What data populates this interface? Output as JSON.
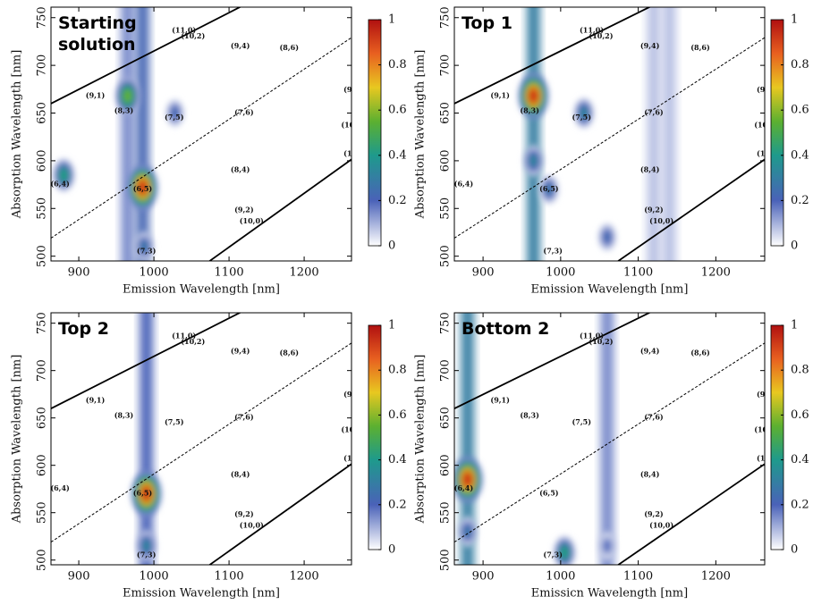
{
  "chart_data": [
    {
      "type": "ple-map",
      "title": "Starting solution",
      "xlabel": "Emission Wavelength [nm]",
      "ylabel": "Absorption Wavelength [nm]",
      "xlim": [
        863,
        1263
      ],
      "ylim": [
        495,
        761
      ],
      "xticks": [
        900,
        1000,
        1100,
        1200
      ],
      "yticks": [
        500,
        550,
        600,
        650,
        700,
        750
      ],
      "clim": [
        0,
        1
      ],
      "cticks": [
        0,
        0.2,
        0.4,
        0.6,
        0.8,
        1
      ],
      "colormap": [
        {
          "value": 0,
          "color": "#ffffff"
        },
        {
          "value": 0.2,
          "color": "#4a62b8"
        },
        {
          "value": 0.4,
          "color": "#1e9a8c"
        },
        {
          "value": 0.55,
          "color": "#5cb030"
        },
        {
          "value": 0.7,
          "color": "#e8c820"
        },
        {
          "value": 0.85,
          "color": "#e86020"
        },
        {
          "value": 1,
          "color": "#b01010"
        }
      ],
      "bands": [
        {
          "x": 965,
          "intensity": 0.15
        },
        {
          "x": 985,
          "intensity": 0.22
        }
      ],
      "peaks": [
        {
          "x": 880,
          "y": 585,
          "intensity": 0.45
        },
        {
          "x": 965,
          "y": 668,
          "intensity": 0.6
        },
        {
          "x": 985,
          "y": 572,
          "intensity": 1
        },
        {
          "x": 987,
          "y": 510,
          "intensity": 0.3
        },
        {
          "x": 1028,
          "y": 650,
          "intensity": 0.25
        }
      ],
      "annotations": [
        {
          "text": "(11,0)",
          "x": 1040,
          "y": 736
        },
        {
          "text": "(10,2)",
          "x": 1052,
          "y": 730
        },
        {
          "text": "(9,4)",
          "x": 1115,
          "y": 720
        },
        {
          "text": "(8,6)",
          "x": 1180,
          "y": 718
        },
        {
          "text": "(9,1)",
          "x": 922,
          "y": 668
        },
        {
          "text": "(8,3)",
          "x": 960,
          "y": 652
        },
        {
          "text": "(7,5)",
          "x": 1027,
          "y": 645
        },
        {
          "text": "(7,6)",
          "x": 1120,
          "y": 650
        },
        {
          "text": "(6,4)",
          "x": 875,
          "y": 575
        },
        {
          "text": "(6,5)",
          "x": 985,
          "y": 570
        },
        {
          "text": "(8,4)",
          "x": 1115,
          "y": 590
        },
        {
          "text": "(9,2)",
          "x": 1120,
          "y": 548
        },
        {
          "text": "(10,0)",
          "x": 1130,
          "y": 536
        },
        {
          "text": "(7,3)",
          "x": 990,
          "y": 505
        },
        {
          "text": "(9",
          "x": 1258,
          "y": 674
        },
        {
          "text": "(10",
          "x": 1258,
          "y": 637
        },
        {
          "text": "(1",
          "x": 1258,
          "y": 607
        }
      ]
    },
    {
      "type": "ple-map",
      "title": "Top 1",
      "xlabel": "Emission Wavelength [nm]",
      "ylabel": "Absorption Wavelength [nm]",
      "xlim": [
        863,
        1263
      ],
      "ylim": [
        495,
        761
      ],
      "xticks": [
        900,
        1000,
        1100,
        1200
      ],
      "yticks": [
        500,
        550,
        600,
        650,
        700,
        750
      ],
      "clim": [
        0,
        1
      ],
      "cticks": [
        0,
        0.2,
        0.4,
        0.6,
        0.8,
        1
      ],
      "colormap": [
        {
          "value": 0,
          "color": "#ffffff"
        },
        {
          "value": 0.2,
          "color": "#4a62b8"
        },
        {
          "value": 0.4,
          "color": "#1e9a8c"
        },
        {
          "value": 0.55,
          "color": "#5cb030"
        },
        {
          "value": 0.7,
          "color": "#e8c820"
        },
        {
          "value": 0.85,
          "color": "#e86020"
        },
        {
          "value": 1,
          "color": "#b01010"
        }
      ],
      "bands": [
        {
          "x": 965,
          "intensity": 0.3
        },
        {
          "x": 1120,
          "intensity": 0.08
        },
        {
          "x": 1140,
          "intensity": 0.08
        }
      ],
      "peaks": [
        {
          "x": 965,
          "y": 668,
          "intensity": 1
        },
        {
          "x": 965,
          "y": 600,
          "intensity": 0.35
        },
        {
          "x": 1030,
          "y": 650,
          "intensity": 0.35
        },
        {
          "x": 985,
          "y": 570,
          "intensity": 0.3
        },
        {
          "x": 1060,
          "y": 520,
          "intensity": 0.25
        }
      ],
      "annotations": [
        {
          "text": "(11,0)",
          "x": 1040,
          "y": 736
        },
        {
          "text": "(10,2)",
          "x": 1052,
          "y": 730
        },
        {
          "text": "(9,4)",
          "x": 1115,
          "y": 720
        },
        {
          "text": "(8,6)",
          "x": 1180,
          "y": 718
        },
        {
          "text": "(9,1)",
          "x": 922,
          "y": 668
        },
        {
          "text": "(8,3)",
          "x": 960,
          "y": 652
        },
        {
          "text": "(7,5)",
          "x": 1027,
          "y": 645
        },
        {
          "text": "(7,6)",
          "x": 1120,
          "y": 650
        },
        {
          "text": "(6,4)",
          "x": 875,
          "y": 575
        },
        {
          "text": "(6,5)",
          "x": 985,
          "y": 570
        },
        {
          "text": "(8,4)",
          "x": 1115,
          "y": 590
        },
        {
          "text": "(9,2)",
          "x": 1120,
          "y": 548
        },
        {
          "text": "(10,0)",
          "x": 1130,
          "y": 536
        },
        {
          "text": "(7,3)",
          "x": 990,
          "y": 505
        },
        {
          "text": "(9",
          "x": 1258,
          "y": 674
        },
        {
          "text": "(10",
          "x": 1258,
          "y": 637
        },
        {
          "text": "(1",
          "x": 1258,
          "y": 607
        }
      ]
    },
    {
      "type": "ple-map",
      "title": "Top 2",
      "xlabel": "Emission Wavelength [nm]",
      "ylabel": "Absorption Wavelength [nm]",
      "xlim": [
        863,
        1263
      ],
      "ylim": [
        495,
        761
      ],
      "xticks": [
        900,
        1000,
        1100,
        1200
      ],
      "yticks": [
        500,
        550,
        600,
        650,
        700,
        750
      ],
      "clim": [
        0,
        1
      ],
      "cticks": [
        0,
        0.2,
        0.4,
        0.6,
        0.8,
        1
      ],
      "colormap": [
        {
          "value": 0,
          "color": "#ffffff"
        },
        {
          "value": 0.2,
          "color": "#4a62b8"
        },
        {
          "value": 0.4,
          "color": "#1e9a8c"
        },
        {
          "value": 0.55,
          "color": "#5cb030"
        },
        {
          "value": 0.7,
          "color": "#e8c820"
        },
        {
          "value": 0.85,
          "color": "#e86020"
        },
        {
          "value": 1,
          "color": "#b01010"
        }
      ],
      "bands": [
        {
          "x": 990,
          "intensity": 0.2
        }
      ],
      "peaks": [
        {
          "x": 990,
          "y": 570,
          "intensity": 1
        },
        {
          "x": 990,
          "y": 515,
          "intensity": 0.35
        }
      ],
      "annotations": [
        {
          "text": "(11,0)",
          "x": 1040,
          "y": 736
        },
        {
          "text": "(10,2)",
          "x": 1052,
          "y": 730
        },
        {
          "text": "(9,4)",
          "x": 1115,
          "y": 720
        },
        {
          "text": "(8,6)",
          "x": 1180,
          "y": 718
        },
        {
          "text": "(9,1)",
          "x": 922,
          "y": 668
        },
        {
          "text": "(8,3)",
          "x": 960,
          "y": 652
        },
        {
          "text": "(7,5)",
          "x": 1027,
          "y": 645
        },
        {
          "text": "(7,6)",
          "x": 1120,
          "y": 650
        },
        {
          "text": "(6,4)",
          "x": 875,
          "y": 575
        },
        {
          "text": "(6,5)",
          "x": 985,
          "y": 570
        },
        {
          "text": "(8,4)",
          "x": 1115,
          "y": 590
        },
        {
          "text": "(9,2)",
          "x": 1120,
          "y": 548
        },
        {
          "text": "(10,0)",
          "x": 1130,
          "y": 536
        },
        {
          "text": "(7,3)",
          "x": 990,
          "y": 505
        },
        {
          "text": "(9",
          "x": 1258,
          "y": 674
        },
        {
          "text": "(10",
          "x": 1258,
          "y": 637
        },
        {
          "text": "(1",
          "x": 1258,
          "y": 607
        }
      ]
    },
    {
      "type": "ple-map",
      "title": "Bottom 2",
      "xlabel": "Emissicn Wavelength [nm]",
      "ylabel": "Absorption Wavelength [nm]",
      "xlim": [
        863,
        1263
      ],
      "ylim": [
        495,
        761
      ],
      "xticks": [
        900,
        1000,
        1100,
        1200
      ],
      "yticks": [
        500,
        550,
        600,
        650,
        700,
        750
      ],
      "clim": [
        0,
        1
      ],
      "cticks": [
        0,
        0.2,
        0.4,
        0.6,
        0.8,
        1
      ],
      "colormap": [
        {
          "value": 0,
          "color": "#ffffff"
        },
        {
          "value": 0.2,
          "color": "#4a62b8"
        },
        {
          "value": 0.4,
          "color": "#1e9a8c"
        },
        {
          "value": 0.55,
          "color": "#5cb030"
        },
        {
          "value": 0.7,
          "color": "#e8c820"
        },
        {
          "value": 0.85,
          "color": "#e86020"
        },
        {
          "value": 1,
          "color": "#b01010"
        }
      ],
      "bands": [
        {
          "x": 880,
          "intensity": 0.3
        },
        {
          "x": 1060,
          "intensity": 0.15
        }
      ],
      "peaks": [
        {
          "x": 880,
          "y": 585,
          "intensity": 1
        },
        {
          "x": 880,
          "y": 530,
          "intensity": 0.3
        },
        {
          "x": 1005,
          "y": 508,
          "intensity": 0.45
        },
        {
          "x": 1060,
          "y": 515,
          "intensity": 0.2
        }
      ],
      "annotations": [
        {
          "text": "(11,0)",
          "x": 1040,
          "y": 736
        },
        {
          "text": "(10,2)",
          "x": 1052,
          "y": 730
        },
        {
          "text": "(9,4)",
          "x": 1115,
          "y": 720
        },
        {
          "text": "(8,6)",
          "x": 1180,
          "y": 718
        },
        {
          "text": "(9,1)",
          "x": 922,
          "y": 668
        },
        {
          "text": "(8,3)",
          "x": 960,
          "y": 652
        },
        {
          "text": "(7,5)",
          "x": 1027,
          "y": 645
        },
        {
          "text": "(7,6)",
          "x": 1120,
          "y": 650
        },
        {
          "text": "(6,4)",
          "x": 875,
          "y": 575
        },
        {
          "text": "(6,5)",
          "x": 985,
          "y": 570
        },
        {
          "text": "(8,4)",
          "x": 1115,
          "y": 590
        },
        {
          "text": "(9,2)",
          "x": 1120,
          "y": 548
        },
        {
          "text": "(10,0)",
          "x": 1130,
          "y": 536
        },
        {
          "text": "(7,3)",
          "x": 990,
          "y": 505
        },
        {
          "text": "(9",
          "x": 1258,
          "y": 674
        },
        {
          "text": "(10",
          "x": 1258,
          "y": 637
        },
        {
          "text": "(1",
          "x": 1258,
          "y": 607
        }
      ]
    }
  ]
}
